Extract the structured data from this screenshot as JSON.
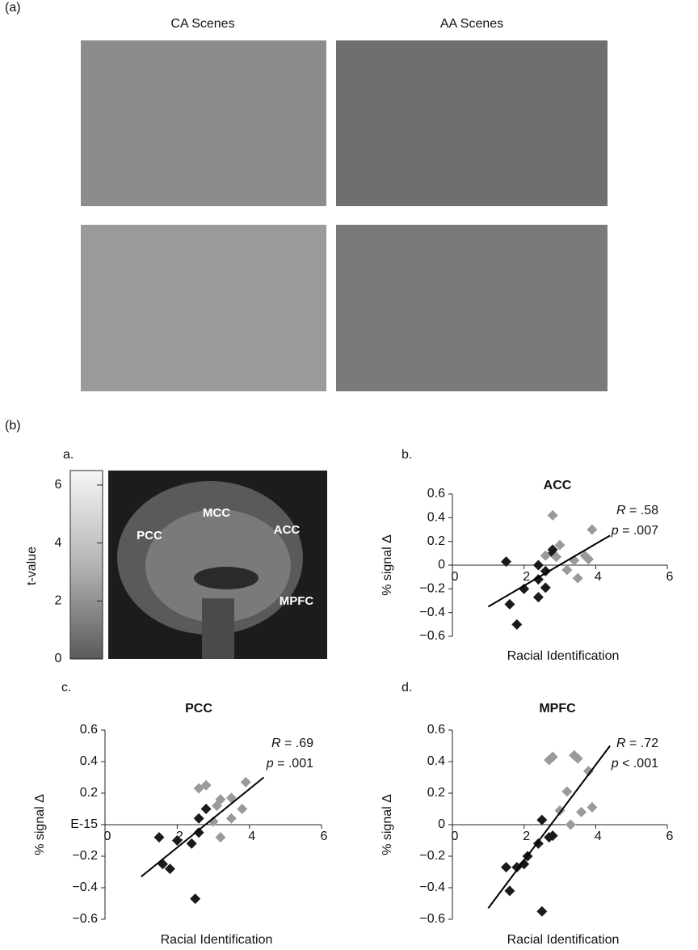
{
  "panel_a": {
    "label": "(a)",
    "columns": [
      "CA Scenes",
      "AA Scenes"
    ]
  },
  "panel_b": {
    "label": "(b)",
    "brain": {
      "panel_label": "a.",
      "colorbar_label": "t-value",
      "colorbar_lim": [
        0,
        6.5
      ],
      "colorbar_ticks": [
        0,
        2,
        4,
        6
      ],
      "regions": [
        "PCC",
        "MCC",
        "ACC",
        "MPFC"
      ]
    }
  },
  "chart_data": [
    {
      "type": "scatter",
      "panel_label": "b.",
      "title": "ACC",
      "x_label": "Racial Identification",
      "y_label": "% signal Δ",
      "xlim": [
        0,
        6
      ],
      "xticks": [
        0,
        2,
        4,
        6
      ],
      "ylim": [
        -0.6,
        0.6
      ],
      "yticks": [
        {
          "value": -0.6,
          "label": "−0.6"
        },
        {
          "value": -0.4,
          "label": "−0.4"
        },
        {
          "value": -0.2,
          "label": "−0.2"
        },
        0,
        0.2,
        0.4,
        0.6
      ],
      "annotations": [
        "R = .58",
        "p = .007"
      ],
      "series": [
        {
          "color": "#1a1a1a",
          "x": [
            1.5,
            1.6,
            1.8,
            2.0,
            2.4,
            2.4,
            2.4,
            2.6,
            2.6,
            2.8,
            2.8
          ],
          "values": [
            0.03,
            -0.33,
            -0.5,
            -0.2,
            0.0,
            -0.12,
            -0.27,
            -0.05,
            -0.19,
            0.1,
            0.13
          ]
        },
        {
          "color": "#9a9a9a",
          "x": [
            2.6,
            2.8,
            3.0,
            3.2,
            3.4,
            3.5,
            3.7,
            3.8,
            3.9,
            2.9
          ],
          "values": [
            0.08,
            0.42,
            0.17,
            -0.04,
            0.04,
            -0.11,
            0.08,
            0.05,
            0.3,
            0.07
          ]
        }
      ],
      "trendline": {
        "color": "#000000",
        "x": [
          1.0,
          4.4
        ],
        "values": [
          -0.35,
          0.25
        ]
      }
    },
    {
      "type": "scatter",
      "panel_label": "c.",
      "title": "PCC",
      "x_label": "Racial Identification",
      "y_label": "% signal Δ",
      "xlim": [
        0,
        6
      ],
      "xticks": [
        0,
        2,
        4,
        6
      ],
      "ylim": [
        -0.6,
        0.6
      ],
      "yticks": [
        {
          "value": -0.6,
          "label": "−0.6"
        },
        {
          "value": -0.4,
          "label": "−0.4"
        },
        {
          "value": -0.2,
          "label": "−0.2"
        },
        {
          "value": 0,
          "label": "E-15"
        },
        0.2,
        0.4,
        0.6
      ],
      "annotations": [
        "R = .69",
        "p = .001"
      ],
      "series": [
        {
          "color": "#1a1a1a",
          "x": [
            1.5,
            1.6,
            1.8,
            2.0,
            2.4,
            2.5,
            2.6,
            2.6,
            2.8
          ],
          "values": [
            -0.08,
            -0.25,
            -0.28,
            -0.1,
            -0.12,
            -0.47,
            -0.05,
            0.04,
            0.1
          ]
        },
        {
          "color": "#9a9a9a",
          "x": [
            2.6,
            2.8,
            3.0,
            3.2,
            3.2,
            3.5,
            3.5,
            3.8,
            3.9,
            3.1
          ],
          "values": [
            0.23,
            0.25,
            0.02,
            -0.08,
            0.16,
            0.17,
            0.04,
            0.1,
            0.27,
            0.12
          ]
        }
      ],
      "trendline": {
        "color": "#000000",
        "x": [
          1.0,
          4.4
        ],
        "values": [
          -0.33,
          0.3
        ]
      }
    },
    {
      "type": "scatter",
      "panel_label": "d.",
      "title": "MPFC",
      "x_label": "Racial Identification",
      "y_label": "% signal Δ",
      "xlim": [
        0,
        6
      ],
      "xticks": [
        0,
        2,
        4,
        6
      ],
      "ylim": [
        -0.6,
        0.6
      ],
      "yticks": [
        {
          "value": -0.6,
          "label": "−0.6"
        },
        {
          "value": -0.4,
          "label": "−0.4"
        },
        {
          "value": -0.2,
          "label": "−0.2"
        },
        0,
        0.2,
        0.4,
        0.6
      ],
      "annotations": [
        "R = .72",
        "p < .001"
      ],
      "series": [
        {
          "color": "#1a1a1a",
          "x": [
            1.5,
            1.6,
            1.8,
            2.0,
            2.1,
            2.4,
            2.5,
            2.5,
            2.7,
            2.8
          ],
          "values": [
            -0.27,
            -0.42,
            -0.27,
            -0.25,
            -0.2,
            -0.12,
            0.03,
            -0.55,
            -0.08,
            -0.07
          ]
        },
        {
          "color": "#9a9a9a",
          "x": [
            2.7,
            2.8,
            3.0,
            3.2,
            3.3,
            3.4,
            3.5,
            3.6,
            3.8,
            3.9
          ],
          "values": [
            0.41,
            0.43,
            0.09,
            0.21,
            0.0,
            0.44,
            0.42,
            0.08,
            0.34,
            0.11
          ]
        }
      ],
      "trendline": {
        "color": "#000000",
        "x": [
          1.0,
          4.4
        ],
        "values": [
          -0.53,
          0.5
        ]
      }
    }
  ]
}
